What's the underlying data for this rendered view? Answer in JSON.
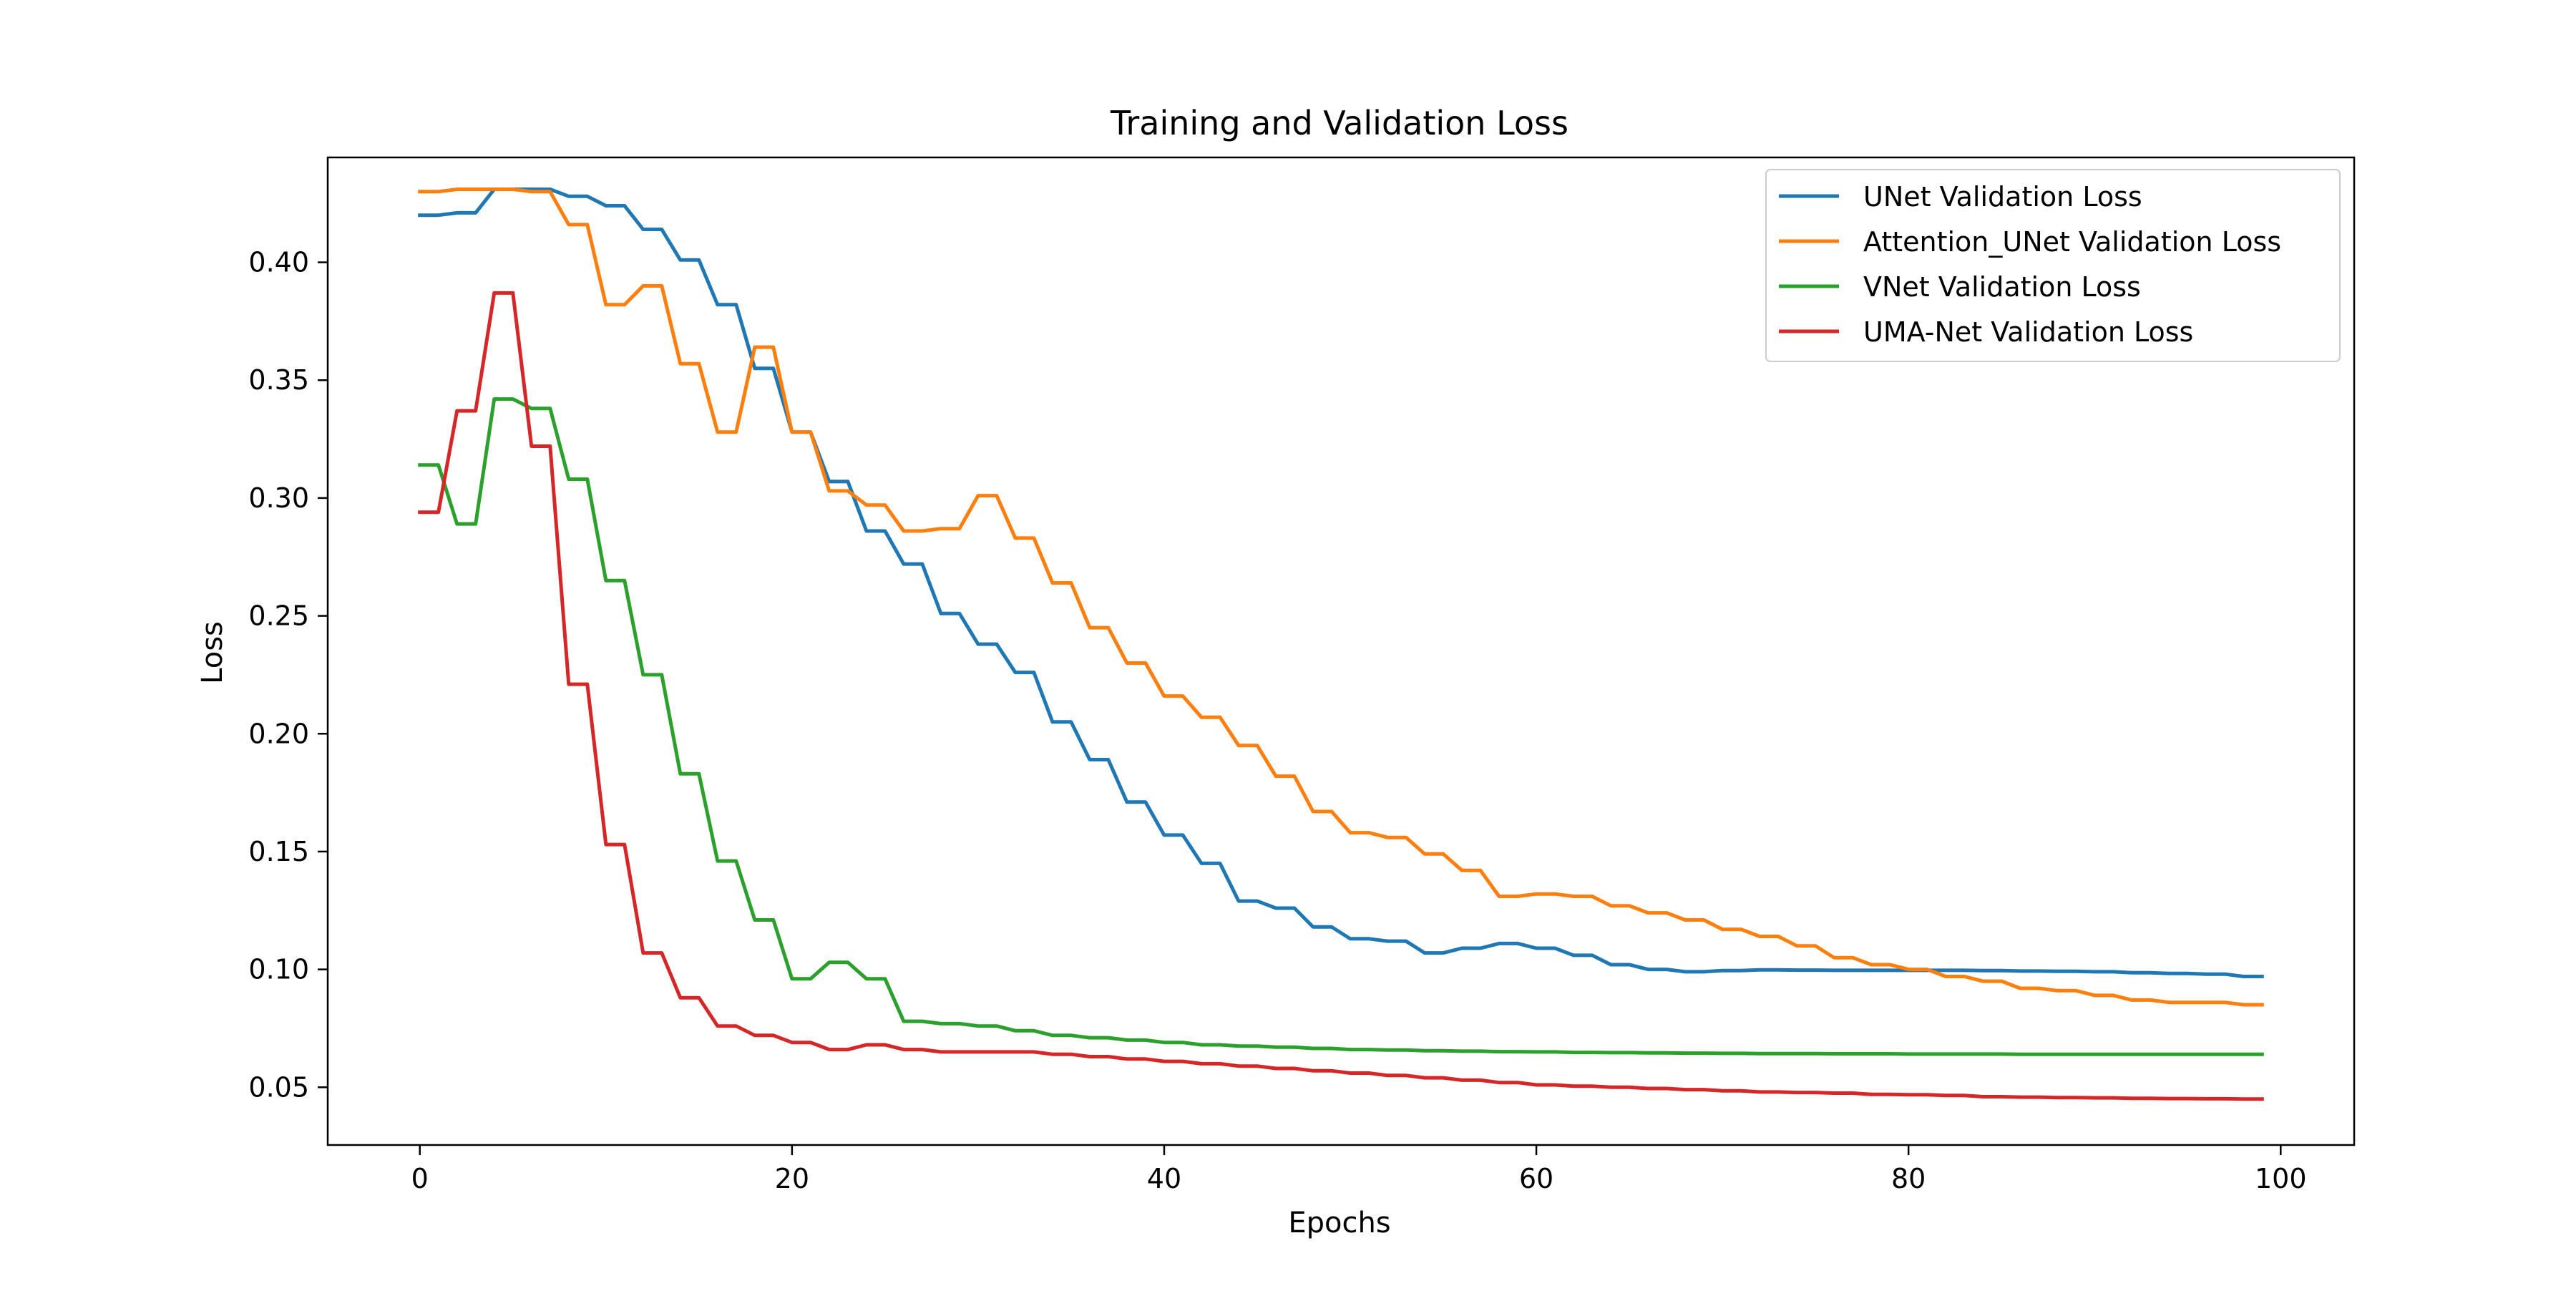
{
  "chart_data": {
    "type": "line",
    "title": "Training and Validation Loss",
    "xlabel": "Epochs",
    "ylabel": "Loss",
    "xlim": [
      -4.95,
      103.95
    ],
    "ylim": [
      0.0255,
      0.4445
    ],
    "xticks": [
      0,
      20,
      40,
      60,
      80,
      100
    ],
    "xtick_labels": [
      "0",
      "20",
      "40",
      "60",
      "80",
      "100"
    ],
    "yticks": [
      0.05,
      0.1,
      0.15,
      0.2,
      0.25,
      0.3,
      0.35,
      0.4
    ],
    "ytick_labels": [
      "0.05",
      "0.10",
      "0.15",
      "0.20",
      "0.25",
      "0.30",
      "0.35",
      "0.40"
    ],
    "grid": false,
    "legend_position": "top-right",
    "series": [
      {
        "name": "UNet Validation Loss",
        "color": "#1f77b4",
        "values": [
          0.42,
          0.42,
          0.421,
          0.421,
          0.431,
          0.431,
          0.431,
          0.431,
          0.428,
          0.428,
          0.424,
          0.424,
          0.414,
          0.414,
          0.401,
          0.401,
          0.382,
          0.382,
          0.355,
          0.355,
          0.328,
          0.328,
          0.307,
          0.307,
          0.286,
          0.286,
          0.272,
          0.272,
          0.251,
          0.251,
          0.238,
          0.238,
          0.226,
          0.226,
          0.205,
          0.205,
          0.189,
          0.189,
          0.171,
          0.171,
          0.157,
          0.157,
          0.145,
          0.145,
          0.129,
          0.129,
          0.126,
          0.126,
          0.118,
          0.118,
          0.113,
          0.113,
          0.112,
          0.112,
          0.107,
          0.107,
          0.109,
          0.109,
          0.111,
          0.111,
          0.109,
          0.109,
          0.106,
          0.106,
          0.102,
          0.102,
          0.1,
          0.1,
          0.099,
          0.099,
          0.0995,
          0.0995,
          0.0998,
          0.0998,
          0.0997,
          0.0997,
          0.0996,
          0.0996,
          0.0996,
          0.0996,
          0.0996,
          0.0996,
          0.0996,
          0.0996,
          0.0995,
          0.0995,
          0.0993,
          0.0993,
          0.0992,
          0.0992,
          0.099,
          0.099,
          0.0986,
          0.0986,
          0.0983,
          0.0983,
          0.098,
          0.098,
          0.097,
          0.097
        ]
      },
      {
        "name": "Attention_UNet Validation Loss",
        "color": "#ff7f0e",
        "values": [
          0.43,
          0.43,
          0.431,
          0.431,
          0.431,
          0.431,
          0.43,
          0.43,
          0.416,
          0.416,
          0.382,
          0.382,
          0.39,
          0.39,
          0.357,
          0.357,
          0.328,
          0.328,
          0.364,
          0.364,
          0.328,
          0.328,
          0.303,
          0.303,
          0.297,
          0.297,
          0.286,
          0.286,
          0.287,
          0.287,
          0.301,
          0.301,
          0.283,
          0.283,
          0.264,
          0.264,
          0.245,
          0.245,
          0.23,
          0.23,
          0.216,
          0.216,
          0.207,
          0.207,
          0.195,
          0.195,
          0.182,
          0.182,
          0.167,
          0.167,
          0.158,
          0.158,
          0.156,
          0.156,
          0.149,
          0.149,
          0.142,
          0.142,
          0.131,
          0.131,
          0.132,
          0.132,
          0.131,
          0.131,
          0.127,
          0.127,
          0.124,
          0.124,
          0.121,
          0.121,
          0.117,
          0.117,
          0.114,
          0.114,
          0.11,
          0.11,
          0.105,
          0.105,
          0.102,
          0.102,
          0.1,
          0.1,
          0.097,
          0.097,
          0.095,
          0.095,
          0.092,
          0.092,
          0.091,
          0.091,
          0.089,
          0.089,
          0.087,
          0.087,
          0.086,
          0.086,
          0.086,
          0.086,
          0.085,
          0.085
        ]
      },
      {
        "name": "VNet Validation Loss",
        "color": "#2ca02c",
        "values": [
          0.314,
          0.314,
          0.289,
          0.289,
          0.342,
          0.342,
          0.338,
          0.338,
          0.308,
          0.308,
          0.265,
          0.265,
          0.225,
          0.225,
          0.183,
          0.183,
          0.146,
          0.146,
          0.121,
          0.121,
          0.096,
          0.096,
          0.103,
          0.103,
          0.096,
          0.096,
          0.078,
          0.078,
          0.077,
          0.077,
          0.076,
          0.076,
          0.074,
          0.074,
          0.072,
          0.072,
          0.071,
          0.071,
          0.07,
          0.07,
          0.069,
          0.069,
          0.068,
          0.068,
          0.0675,
          0.0675,
          0.067,
          0.067,
          0.0665,
          0.0665,
          0.066,
          0.066,
          0.0658,
          0.0658,
          0.0655,
          0.0655,
          0.0653,
          0.0653,
          0.0651,
          0.0651,
          0.065,
          0.065,
          0.0648,
          0.0648,
          0.0647,
          0.0647,
          0.0646,
          0.0646,
          0.0645,
          0.0645,
          0.0644,
          0.0644,
          0.0643,
          0.0643,
          0.0643,
          0.0643,
          0.0642,
          0.0642,
          0.0642,
          0.0642,
          0.0641,
          0.0641,
          0.0641,
          0.0641,
          0.0641,
          0.0641,
          0.064,
          0.064,
          0.064,
          0.064,
          0.064,
          0.064,
          0.064,
          0.064,
          0.064,
          0.064,
          0.064,
          0.064,
          0.064,
          0.064
        ]
      },
      {
        "name": "UMA-Net Validation Loss",
        "color": "#d62728",
        "values": [
          0.294,
          0.294,
          0.337,
          0.337,
          0.387,
          0.387,
          0.322,
          0.322,
          0.221,
          0.221,
          0.153,
          0.153,
          0.107,
          0.107,
          0.088,
          0.088,
          0.076,
          0.076,
          0.072,
          0.072,
          0.069,
          0.069,
          0.066,
          0.066,
          0.068,
          0.068,
          0.066,
          0.066,
          0.065,
          0.065,
          0.065,
          0.065,
          0.065,
          0.065,
          0.064,
          0.064,
          0.063,
          0.063,
          0.062,
          0.062,
          0.061,
          0.061,
          0.06,
          0.06,
          0.059,
          0.059,
          0.058,
          0.058,
          0.057,
          0.057,
          0.056,
          0.056,
          0.055,
          0.055,
          0.054,
          0.054,
          0.053,
          0.053,
          0.052,
          0.052,
          0.051,
          0.051,
          0.0505,
          0.0505,
          0.05,
          0.05,
          0.0495,
          0.0495,
          0.049,
          0.049,
          0.0485,
          0.0485,
          0.048,
          0.048,
          0.0478,
          0.0478,
          0.0475,
          0.0475,
          0.047,
          0.047,
          0.0468,
          0.0468,
          0.0465,
          0.0465,
          0.046,
          0.046,
          0.0458,
          0.0458,
          0.0456,
          0.0456,
          0.0455,
          0.0455,
          0.0453,
          0.0453,
          0.0452,
          0.0452,
          0.0451,
          0.0451,
          0.045,
          0.045
        ]
      }
    ]
  }
}
